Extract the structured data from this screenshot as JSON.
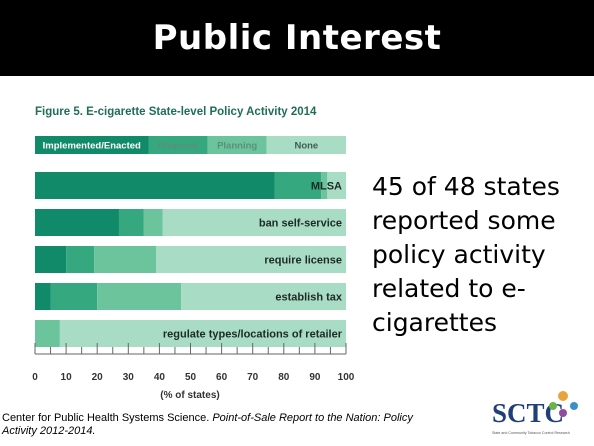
{
  "slide": {
    "title": "Public Interest",
    "side_text": "45 of 48 states reported some policy activity related to e-cigarettes",
    "citation_prefix": "Center for Public Health Systems Science. ",
    "citation_italic": "Point-of-Sale Report to the Nation: Policy Activity 2012-2014.",
    "logo_text": "SCTC",
    "logo_tagline": "State and Community Tobacco Control Research"
  },
  "chart_data": {
    "type": "bar",
    "orientation": "horizontal",
    "stacked": true,
    "title": "Figure 5. E-cigarette State-level Policy Activity 2014",
    "xlabel": "(% of states)",
    "ylabel": "",
    "xlim": [
      0,
      100
    ],
    "xticks": [
      0,
      10,
      20,
      30,
      40,
      50,
      60,
      70,
      80,
      90,
      100
    ],
    "legend_position": "top",
    "categories": [
      "MLSA",
      "ban self-service",
      "require license",
      "establish tax",
      "regulate types/locations of retailer"
    ],
    "series": [
      {
        "name": "Implemented/Enacted",
        "color": "#118a69",
        "values": [
          77,
          27,
          10,
          5,
          0
        ]
      },
      {
        "name": "Proposal",
        "color": "#35a87f",
        "values": [
          15,
          8,
          9,
          15,
          0
        ]
      },
      {
        "name": "Planning",
        "color": "#6cc49c",
        "values": [
          2,
          6,
          20,
          27,
          8
        ]
      },
      {
        "name": "None",
        "color": "#a9dcc4",
        "values": [
          6,
          59,
          61,
          53,
          92
        ]
      }
    ]
  }
}
